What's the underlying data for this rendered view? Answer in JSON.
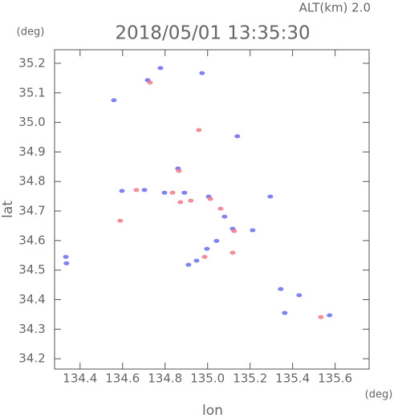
{
  "chart_data": {
    "type": "scatter",
    "title": "2018/05/01 13:35:30",
    "subtitle": "ALT(km)  2.0",
    "y_unit": "(deg)",
    "x_unit": "(deg)",
    "y_label": "lat",
    "x_label": "lon",
    "xlim": [
      134.28,
      135.76
    ],
    "ylim": [
      34.165,
      35.246
    ],
    "xticks": [
      134.4,
      134.6,
      134.8,
      {
        "value": 135,
        "label": "135.0"
      },
      135.2,
      135.4,
      135.6
    ],
    "yticks": [
      34.2,
      34.3,
      34.4,
      34.5,
      34.6,
      34.7,
      34.8,
      34.9,
      {
        "value": 35,
        "label": "35.0"
      },
      35.1,
      35.2
    ],
    "series": [
      {
        "color": "#6b6bf0",
        "x": [
          134.559,
          134.718,
          134.778,
          134.861,
          134.891,
          135.005,
          135.08,
          135.118,
          134.333,
          134.336,
          134.91,
          134.948,
          134.997,
          134.797,
          134.703,
          134.597,
          135.295,
          135.344,
          135.431,
          135.363,
          135.574,
          134.974,
          135.14,
          135.212,
          135.042
        ],
        "values": [
          35.075,
          35.143,
          35.184,
          34.844,
          34.762,
          34.749,
          34.681,
          34.64,
          34.545,
          34.523,
          34.518,
          34.532,
          34.572,
          34.762,
          34.771,
          34.768,
          34.749,
          34.436,
          34.415,
          34.355,
          34.347,
          35.167,
          34.953,
          34.635,
          34.599
        ]
      },
      {
        "color": "#f07a8a",
        "x": [
          134.729,
          134.959,
          134.865,
          134.665,
          134.921,
          135.013,
          135.061,
          135.125,
          134.589,
          135.118,
          134.986,
          135.533,
          134.872,
          134.835
        ],
        "values": [
          35.135,
          34.974,
          34.836,
          34.771,
          34.735,
          34.741,
          34.708,
          34.632,
          34.667,
          34.559,
          34.545,
          34.341,
          34.73,
          34.762
        ]
      }
    ]
  }
}
